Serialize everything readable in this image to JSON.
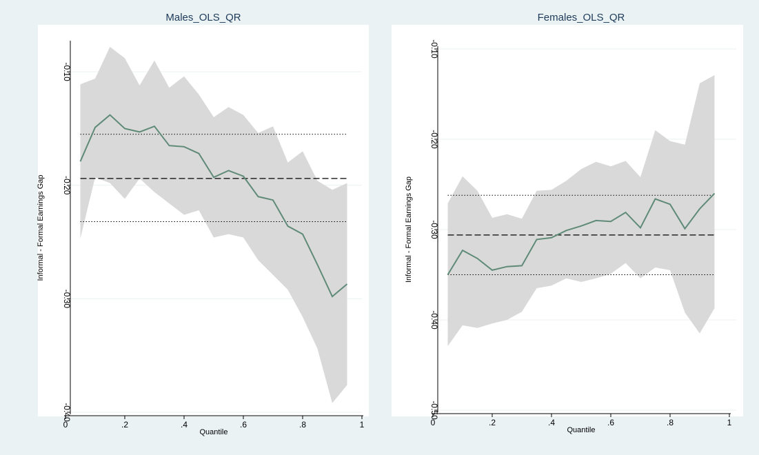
{
  "colors": {
    "outer_background": "#eaf2f3",
    "plot_background": "#ffffff",
    "gridline": "#eaf2f3",
    "band_fill": "#d9d9d9",
    "estimate_line": "#5f8a78",
    "reference_line": "#000000",
    "title_text": "#1e3b5a"
  },
  "chart_data": [
    {
      "type": "line",
      "title": "Males_OLS_QR",
      "xlabel": "Quantile",
      "ylabel": "Informal - Formal Earnings Gap",
      "xlim": [
        0,
        1
      ],
      "ylim": [
        -0.4,
        -0.075
      ],
      "x_ticks": [
        0,
        0.2,
        0.4,
        0.6,
        0.8,
        1
      ],
      "x_tick_labels": [
        "0",
        ".2",
        ".4",
        ".6",
        ".8",
        "1"
      ],
      "y_ticks": [
        -0.1,
        -0.2,
        -0.3,
        -0.4
      ],
      "y_tick_labels": [
        "-0.10",
        "-0.20",
        "-0.30",
        "-0.40"
      ],
      "grid": true,
      "x": [
        0.05,
        0.1,
        0.15,
        0.2,
        0.25,
        0.3,
        0.35,
        0.4,
        0.45,
        0.5,
        0.55,
        0.6,
        0.65,
        0.7,
        0.75,
        0.8,
        0.85,
        0.9,
        0.95
      ],
      "estimate": [
        -0.179,
        -0.149,
        -0.138,
        -0.15,
        -0.153,
        -0.148,
        -0.165,
        -0.166,
        -0.172,
        -0.193,
        -0.187,
        -0.192,
        -0.21,
        -0.213,
        -0.236,
        -0.243,
        -0.27,
        -0.298,
        -0.287
      ],
      "ci_upper": [
        -0.111,
        -0.106,
        -0.078,
        -0.088,
        -0.112,
        -0.09,
        -0.114,
        -0.104,
        -0.12,
        -0.14,
        -0.131,
        -0.138,
        -0.154,
        -0.148,
        -0.18,
        -0.17,
        -0.196,
        -0.204,
        -0.198
      ],
      "ci_lower": [
        -0.247,
        -0.193,
        -0.198,
        -0.212,
        -0.194,
        -0.206,
        -0.216,
        -0.226,
        -0.222,
        -0.246,
        -0.243,
        -0.246,
        -0.266,
        -0.279,
        -0.292,
        -0.316,
        -0.344,
        -0.392,
        -0.376
      ],
      "ols_estimate": -0.194,
      "ols_ci_upper": -0.155,
      "ols_ci_lower": -0.232
    },
    {
      "type": "line",
      "title": "Females_OLS_QR",
      "xlabel": "Quantile",
      "ylabel": "Informal - Formal Earnings Gap",
      "xlim": [
        0,
        1
      ],
      "ylim": [
        -0.5,
        -0.1
      ],
      "x_ticks": [
        0,
        0.2,
        0.4,
        0.6,
        0.8,
        1
      ],
      "x_tick_labels": [
        "0",
        ".2",
        ".4",
        ".6",
        ".8",
        "1"
      ],
      "y_ticks": [
        -0.1,
        -0.2,
        -0.3,
        -0.4,
        -0.5
      ],
      "y_tick_labels": [
        "-0.10",
        "-0.20",
        "-0.30",
        "-0.40",
        "-0.50"
      ],
      "grid": true,
      "x": [
        0.05,
        0.1,
        0.15,
        0.2,
        0.25,
        0.3,
        0.35,
        0.4,
        0.45,
        0.5,
        0.55,
        0.6,
        0.65,
        0.7,
        0.75,
        0.8,
        0.85,
        0.9,
        0.95
      ],
      "estimate": [
        -0.35,
        -0.323,
        -0.332,
        -0.345,
        -0.341,
        -0.34,
        -0.311,
        -0.309,
        -0.301,
        -0.296,
        -0.29,
        -0.291,
        -0.281,
        -0.298,
        -0.266,
        -0.272,
        -0.299,
        -0.277,
        -0.26
      ],
      "ci_upper": [
        -0.271,
        -0.241,
        -0.257,
        -0.287,
        -0.283,
        -0.288,
        -0.257,
        -0.256,
        -0.246,
        -0.233,
        -0.225,
        -0.23,
        -0.224,
        -0.242,
        -0.19,
        -0.202,
        -0.206,
        -0.138,
        -0.129
      ],
      "ci_lower": [
        -0.429,
        -0.406,
        -0.409,
        -0.404,
        -0.4,
        -0.391,
        -0.365,
        -0.362,
        -0.354,
        -0.358,
        -0.354,
        -0.349,
        -0.337,
        -0.354,
        -0.342,
        -0.345,
        -0.392,
        -0.415,
        -0.387
      ],
      "ols_estimate": -0.306,
      "ols_ci_upper": -0.262,
      "ols_ci_lower": -0.35
    }
  ]
}
